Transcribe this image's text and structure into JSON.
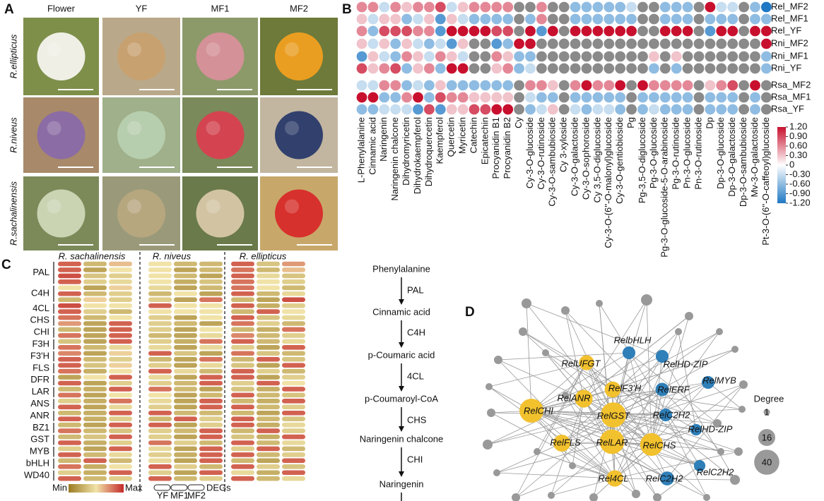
{
  "panel_a": {
    "label": "A",
    "columns": [
      "Flower",
      "YF",
      "MF1",
      "MF2"
    ],
    "rows": [
      "R.ellipticus",
      "R.niveus",
      "R.sachalinensis"
    ]
  },
  "panel_b": {
    "label": "B",
    "type": "heatmap",
    "rows": [
      "Rel_MF2",
      "Rel_MF1",
      "Rel_YF",
      "Rni_MF2",
      "Rni_MF1",
      "Rni_YF",
      "Rsa_MF2",
      "Rsa_MF1",
      "Rsa_YF"
    ],
    "columns": [
      "L-Phenylalanine",
      "Cinnamic acid",
      "Naringenin",
      "Naringenin chalcone",
      "Dihydromyricetin",
      "Dihydrokaempferol",
      "Dihydroquercetin",
      "Kaempferol",
      "Quercetin",
      "Myricetin",
      "Catechin",
      "Epicatechin",
      "Procyanidin B1",
      "Procyanidin B2",
      "Cy",
      "Cy-3-O-glucoside",
      "Cy-3-O-rutinoside",
      "Cy-3-O-sambubioside",
      "Cy 3-xyloside",
      "Cy-3-O-galactoside",
      "Cy-3-O-sophoroside",
      "Cy 3,5-O-diglucoside",
      "Cy-3-O-(6''-O-malonyl)glucoside",
      "Cy-3-O-gentiobioside",
      "Pg",
      "Pg-3,5-O-diglucoside",
      "Pg-3-O-glucoside",
      "Pg-3-O-glucoside-5-O-arabinoside",
      "Pg-3-O-rutinoside",
      "Pn-3-O-glucoside",
      "Pn-3-O-rutinoside",
      "Dp",
      "Dp-3-O-glucoside",
      "Dp-3-O-galactoside",
      "Dp-3-O-sambubioside",
      "Mv-3-O-galactoside",
      "Pt-3-O-(6''-O-caffeoyl)glucoside"
    ],
    "values": [
      [
        0.6,
        0.6,
        -0.3,
        0.6,
        0.3,
        0.6,
        0.6,
        0.9,
        -0.3,
        0.3,
        0.6,
        0.6,
        0.6,
        0.6,
        null,
        null,
        0.6,
        null,
        null,
        -0.6,
        -0.6,
        -0.6,
        -0.6,
        -0.6,
        -0.3,
        null,
        null,
        -0.6,
        -0.6,
        -0.6,
        null,
        1.2,
        -0.3,
        -0.3,
        null,
        -0.6,
        -1.2
      ],
      [
        0.3,
        -0.3,
        0.3,
        0.3,
        -0.6,
        -0.3,
        0.3,
        -0.9,
        0.3,
        -0.3,
        -0.6,
        -0.6,
        -0.6,
        -0.6,
        null,
        -0.6,
        0.6,
        null,
        null,
        -0.6,
        -0.6,
        -0.6,
        -0.6,
        -0.6,
        -0.6,
        null,
        null,
        -0.6,
        -0.6,
        -0.6,
        null,
        -0.6,
        -0.6,
        -0.6,
        null,
        -0.6,
        -0.6
      ],
      [
        0.6,
        -0.6,
        0.9,
        0.9,
        0.9,
        0.6,
        0.6,
        -0.9,
        1.2,
        1.2,
        1.2,
        1.2,
        0.9,
        0.9,
        null,
        1.2,
        -0.9,
        1.2,
        null,
        1.2,
        1.2,
        1.2,
        1.2,
        1.2,
        1.2,
        null,
        null,
        1.2,
        1.2,
        1.2,
        null,
        -0.9,
        1.2,
        1.2,
        null,
        1.2,
        1.2
      ],
      [
        0.3,
        -0.3,
        0.3,
        -0.6,
        0.3,
        -0.3,
        -0.6,
        -0.3,
        -0.9,
        0.3,
        null,
        null,
        -0.9,
        -0.6,
        1.2,
        1.2,
        null,
        null,
        null,
        null,
        null,
        null,
        null,
        null,
        null,
        null,
        null,
        null,
        null,
        null,
        null,
        null,
        null,
        null,
        null,
        null,
        1.2
      ],
      [
        -0.9,
        0.3,
        -0.3,
        -0.6,
        0.6,
        0.3,
        -0.3,
        0.6,
        0.3,
        -0.3,
        null,
        null,
        0.6,
        0.3,
        -0.6,
        -0.6,
        null,
        null,
        null,
        null,
        null,
        null,
        null,
        null,
        null,
        null,
        0.3,
        null,
        0.3,
        null,
        null,
        null,
        null,
        null,
        null,
        null,
        -0.6
      ],
      [
        0.9,
        0.3,
        0.6,
        0.9,
        -0.6,
        0.3,
        0.6,
        -0.6,
        1.2,
        1.2,
        null,
        null,
        0.3,
        0.6,
        -0.6,
        -0.3,
        null,
        null,
        null,
        null,
        null,
        null,
        null,
        null,
        null,
        null,
        -0.6,
        null,
        -0.6,
        null,
        null,
        null,
        null,
        null,
        null,
        null,
        -0.6
      ],
      [
        -0.3,
        -0.3,
        0.6,
        0.6,
        -0.6,
        -0.3,
        -0.6,
        0.3,
        -0.6,
        -0.6,
        -0.6,
        -0.6,
        -0.6,
        -0.6,
        null,
        0.6,
        0.6,
        0.3,
        null,
        0.6,
        1.2,
        0.6,
        0.6,
        1.2,
        null,
        1.2,
        0.6,
        0.6,
        0.6,
        0.6,
        null,
        0.3,
        0.6,
        0.9,
        null,
        1.2,
        null
      ],
      [
        1.2,
        1.2,
        -0.6,
        -0.6,
        0.6,
        1.2,
        -0.6,
        0.9,
        0.6,
        0.6,
        0.3,
        0.3,
        0.3,
        0.3,
        null,
        -0.3,
        -0.6,
        -0.6,
        null,
        -0.6,
        -0.6,
        -0.6,
        -0.6,
        -0.6,
        null,
        -0.6,
        -0.6,
        -0.6,
        -0.6,
        -0.6,
        null,
        -0.6,
        -0.6,
        -0.6,
        null,
        -0.6,
        null
      ],
      [
        -0.6,
        -0.6,
        -0.3,
        -0.3,
        -0.3,
        -0.9,
        0.9,
        -0.9,
        0.3,
        0.3,
        0.9,
        0.9,
        1.2,
        1.2,
        null,
        -0.6,
        -0.3,
        0.3,
        null,
        -0.3,
        -0.6,
        -0.3,
        -0.3,
        -0.6,
        null,
        -0.6,
        -0.3,
        -0.6,
        -0.6,
        -0.6,
        null,
        -0.6,
        -0.6,
        -0.6,
        null,
        -0.6,
        null
      ]
    ],
    "clim": [
      -1.2,
      1.2
    ],
    "colorbar_ticks": [
      {
        "value": 1.2,
        "label": "1.20"
      },
      {
        "value": 0.9,
        "label": "0.90"
      },
      {
        "value": 0.6,
        "label": "0.60"
      },
      {
        "value": 0.3,
        "label": "0.30"
      },
      0,
      {
        "value": -0.3,
        "label": "-0.30"
      },
      {
        "value": -0.6,
        "label": "-0.60"
      },
      {
        "value": -0.9,
        "label": "-0.90"
      },
      {
        "value": -1.2,
        "label": "-1.20"
      }
    ],
    "colors": [
      "#1f78c4",
      "#ffffff",
      "#c8102e"
    ],
    "missing_color": "#8a8a8a"
  },
  "panel_c": {
    "label": "C",
    "species": [
      "R. sachalinensis",
      "R. niveus",
      "R. ellipticus"
    ],
    "colors": [
      "#9b7a22",
      "#f1e3a8",
      "#c42a2a"
    ],
    "genes": [
      {
        "name": "PAL",
        "values": [
          [
            0.85,
            0.3,
            0.6,
            0.5,
            0.3,
            0.3,
            0.85,
            0.35,
            0.7
          ],
          [
            0.85,
            0.2,
            0.5,
            0.5,
            0.2,
            0.3,
            0.8,
            0.3,
            0.6
          ],
          [
            0.9,
            0.35,
            0.4,
            0.5,
            0.3,
            0.2,
            0.85,
            0.45,
            0.35
          ],
          [
            0.85,
            0.4,
            0.45,
            0.5,
            0.25,
            0.35,
            0.8,
            0.5,
            0.4
          ]
        ]
      },
      {
        "name": "C4H",
        "values": [
          [
            0.5,
            0.2,
            0.55,
            0.45,
            0.2,
            0.3,
            0.8,
            0.5,
            0.3
          ],
          [
            0.85,
            0.3,
            0.4,
            0.3,
            0.5,
            0.2,
            0.85,
            0.3,
            0.45
          ],
          [
            0.3,
            0.55,
            0.4,
            0.4,
            0.2,
            0.8,
            0.3,
            0.2,
            0.9
          ]
        ]
      },
      {
        "name": "4CL",
        "values": [
          [
            0.9,
            0.5,
            0.5,
            0.85,
            0.5,
            0.5,
            0.85,
            0.25,
            0.4
          ],
          [
            0.85,
            0.4,
            0.3,
            0.5,
            0.5,
            0.5,
            0.3,
            0.85,
            0.5
          ]
        ]
      },
      {
        "name": "CHS",
        "values": [
          [
            0.8,
            0.3,
            0.5,
            0.4,
            0.2,
            0.5,
            0.85,
            0.35,
            0.45
          ],
          [
            0.7,
            0.2,
            0.85,
            0.4,
            0.3,
            0.2,
            0.8,
            0.4,
            0.3
          ]
        ]
      },
      {
        "name": "CHI",
        "values": [
          [
            0.3,
            0.2,
            0.85,
            0.4,
            0.2,
            0.5,
            0.3,
            0.25,
            0.8
          ],
          [
            0.8,
            0.2,
            0.85,
            0.3,
            0.2,
            0.45,
            0.75,
            0.3,
            0.4
          ]
        ]
      },
      {
        "name": "F3H",
        "values": [
          [
            0.35,
            0.2,
            0.85,
            0.4,
            0.25,
            0.8,
            0.85,
            0.3,
            0.45
          ],
          [
            0.8,
            0.3,
            0.45,
            0.45,
            0.2,
            0.45,
            0.4,
            0.2,
            0.85
          ]
        ]
      },
      {
        "name": "F3'H",
        "values": [
          [
            0.75,
            0.2,
            0.55,
            0.85,
            0.35,
            0.2,
            0.8,
            0.35,
            0.3
          ],
          [
            0.85,
            0.3,
            0.4,
            0.3,
            0.2,
            0.8,
            0.3,
            0.85,
            0.35
          ]
        ]
      },
      {
        "name": "FLS",
        "values": [
          [
            0.85,
            0.35,
            0.55,
            0.4,
            0.2,
            0.45,
            0.35,
            0.2,
            0.85
          ],
          [
            0.8,
            0.25,
            0.5,
            0.85,
            0.45,
            0.3,
            0.85,
            0.4,
            0.3
          ]
        ]
      },
      {
        "name": "DFR",
        "values": [
          [
            0.2,
            0.5,
            0.85,
            0.45,
            0.2,
            0.85,
            0.85,
            0.2,
            0.4
          ],
          [
            0.85,
            0.2,
            0.4,
            0.4,
            0.3,
            0.85,
            0.4,
            0.85,
            0.5
          ]
        ]
      },
      {
        "name": "LAR",
        "values": [
          [
            0.3,
            0.25,
            0.85,
            0.8,
            0.3,
            0.2,
            0.35,
            0.25,
            0.85
          ],
          [
            0.8,
            0.2,
            0.5,
            0.5,
            0.2,
            0.3,
            0.85,
            0.3,
            0.35
          ]
        ]
      },
      {
        "name": "ANS",
        "values": [
          [
            0.4,
            0.25,
            0.8,
            0.45,
            0.2,
            0.85,
            0.3,
            0.25,
            0.85
          ],
          [
            0.85,
            0.2,
            0.45,
            0.4,
            0.2,
            0.85,
            0.85,
            0.3,
            0.4
          ]
        ]
      },
      {
        "name": "ANR",
        "values": [
          [
            0.3,
            0.25,
            0.85,
            0.85,
            0.3,
            0.3,
            0.3,
            0.2,
            0.85
          ],
          [
            0.85,
            0.25,
            0.4,
            0.3,
            0.85,
            0.4,
            0.85,
            0.3,
            0.35
          ]
        ]
      },
      {
        "name": "BZ1",
        "values": [
          [
            0.3,
            0.2,
            0.85,
            0.85,
            0.2,
            0.4,
            0.85,
            0.25,
            0.45
          ],
          [
            0.8,
            0.3,
            0.35,
            0.4,
            0.3,
            0.85,
            0.3,
            0.85,
            0.4
          ]
        ]
      },
      {
        "name": "GST",
        "values": [
          [
            0.3,
            0.35,
            0.85,
            0.4,
            0.2,
            0.85,
            0.35,
            0.25,
            0.85
          ],
          [
            0.85,
            0.25,
            0.4,
            0.8,
            0.4,
            0.3,
            0.85,
            0.3,
            0.45
          ]
        ]
      },
      {
        "name": "MYB",
        "values": [
          [
            0.4,
            0.2,
            0.85,
            0.45,
            0.2,
            0.85,
            0.4,
            0.85,
            0.3
          ],
          [
            0.85,
            0.3,
            0.45,
            0.4,
            0.25,
            0.85,
            0.85,
            0.3,
            0.4
          ]
        ]
      },
      {
        "name": "bHLH",
        "values": [
          [
            0.3,
            0.85,
            0.3,
            0.45,
            0.2,
            0.85,
            0.3,
            0.2,
            0.85
          ],
          [
            0.8,
            0.25,
            0.5,
            0.85,
            0.4,
            0.3,
            0.85,
            0.4,
            0.35
          ]
        ]
      },
      {
        "name": "WD40",
        "values": [
          [
            0.4,
            0.25,
            0.85,
            0.4,
            0.2,
            0.85,
            0.45,
            0.25,
            0.85
          ],
          [
            0.85,
            0.3,
            0.4,
            0.85,
            0.3,
            0.4,
            0.85,
            0.3,
            0.45
          ]
        ]
      }
    ],
    "legend": {
      "min": "Min",
      "max": "Max",
      "stages": [
        "YF",
        "MF1",
        "MF2"
      ],
      "degs": "DEGs"
    }
  },
  "pathway": {
    "nodes": [
      "Phenylalanine",
      "Cinnamic acid",
      "p-Coumaric acid",
      "p-Coumaroyl-CoA",
      "Naringenin chalcone",
      "Naringenin"
    ],
    "enzymes": [
      "PAL",
      "C4H",
      "4CL",
      "CHS",
      "CHI"
    ]
  },
  "panel_d": {
    "label": "D",
    "legend_title": "Degree",
    "legend_degrees": [
      1,
      16,
      40
    ],
    "other_color": "#999999",
    "nodes": [
      {
        "name": "RelbHLH",
        "degree": 8,
        "color": "#2f7fb8"
      },
      {
        "name": "RelUFGT",
        "degree": 12,
        "color": "#f2c12e"
      },
      {
        "name": "RelHD-ZIP",
        "degree": 8,
        "color": "#2f7fb8"
      },
      {
        "name": "RelF3'H",
        "degree": 14,
        "color": "#f2c12e"
      },
      {
        "name": "RelERF",
        "degree": 9,
        "color": "#2f7fb8"
      },
      {
        "name": "RelMYB",
        "degree": 8,
        "color": "#2f7fb8"
      },
      {
        "name": "RelANR",
        "degree": 18,
        "color": "#f2c12e"
      },
      {
        "name": "RelCHI",
        "degree": 36,
        "color": "#f2c12e"
      },
      {
        "name": "RelGST",
        "degree": 40,
        "color": "#f2c12e"
      },
      {
        "name": "RelC2H2",
        "degree": 8,
        "color": "#2f7fb8"
      },
      {
        "name": "RelHD-ZIP",
        "degree": 6,
        "color": "#2f7fb8"
      },
      {
        "name": "RelFLS",
        "degree": 16,
        "color": "#f2c12e"
      },
      {
        "name": "RelLAR",
        "degree": 38,
        "color": "#f2c12e"
      },
      {
        "name": "RelCHS",
        "degree": 32,
        "color": "#f2c12e"
      },
      {
        "name": "Rel4CL",
        "degree": 15,
        "color": "#f2c12e"
      },
      {
        "name": "RelC2H2",
        "degree": 10,
        "color": "#2f7fb8"
      },
      {
        "name": "RelC2H2",
        "degree": 6,
        "color": "#2f7fb8"
      }
    ]
  }
}
